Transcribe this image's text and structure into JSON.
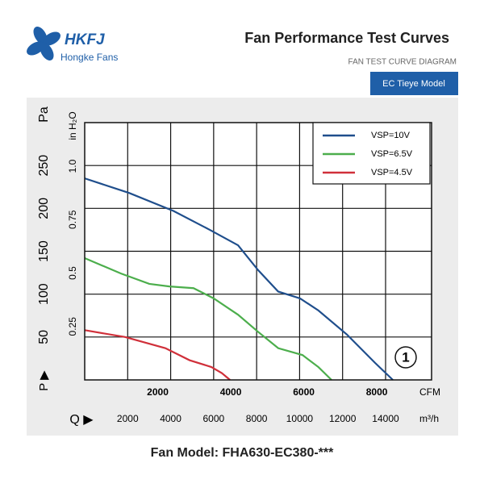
{
  "chart_data": {
    "type": "line",
    "logo": "HKFJ",
    "brand": "Hongke Fans",
    "title": "Fan Performance Test Curves",
    "subtitle": "FAN TEST CURVE DIAGRAM",
    "badge": "EC Tieye Model",
    "footer": "Fan Model: FHA630-EC380-***",
    "annotation": "1",
    "xlabel": "CFM",
    "x2label": "m³/h",
    "x_symbol": "Q ▶",
    "ylabel": "Pa",
    "y2label": "in H₂O",
    "y_symbol": "P ▶",
    "xlim": [
      0,
      9500
    ],
    "xticks": [
      2000,
      4000,
      6000,
      8000
    ],
    "x2lim": [
      0,
      16140
    ],
    "x2ticks": [
      2000,
      4000,
      6000,
      8000,
      10000,
      12000,
      14000
    ],
    "ylim": [
      0,
      300
    ],
    "yticks": [
      50,
      100,
      150,
      200,
      250
    ],
    "y2lim": [
      0,
      1.204
    ],
    "y2ticks": [
      0.25,
      0.5,
      0.75,
      {
        "value": 1,
        "label": "1.0"
      }
    ],
    "grid": true,
    "legend": "top-right",
    "series": [
      {
        "name": "VSP=10V",
        "color": "#1f4e8c",
        "x": [
          0,
          1215,
          2430,
          3425,
          4200,
          4750,
          5300,
          5900,
          6400,
          7180,
          7950,
          8440
        ],
        "values": [
          235,
          218,
          197,
          175,
          157,
          128,
          103,
          95,
          81,
          53,
          20,
          0
        ]
      },
      {
        "name": "VSP=6.5V",
        "color": "#4cae4c",
        "x": [
          0,
          995,
          1770,
          2320,
          2980,
          3535,
          4200,
          4750,
          5300,
          5965,
          6400,
          6760
        ],
        "values": [
          142,
          124,
          112,
          109,
          107,
          95,
          76,
          56,
          37,
          29,
          15,
          0
        ]
      },
      {
        "name": "VSP=4.5V",
        "color": "#d0303a",
        "x": [
          0,
          1105,
          2210,
          2870,
          3470,
          3755,
          3980
        ],
        "values": [
          58,
          50,
          37,
          23,
          15,
          8,
          0
        ]
      }
    ]
  }
}
